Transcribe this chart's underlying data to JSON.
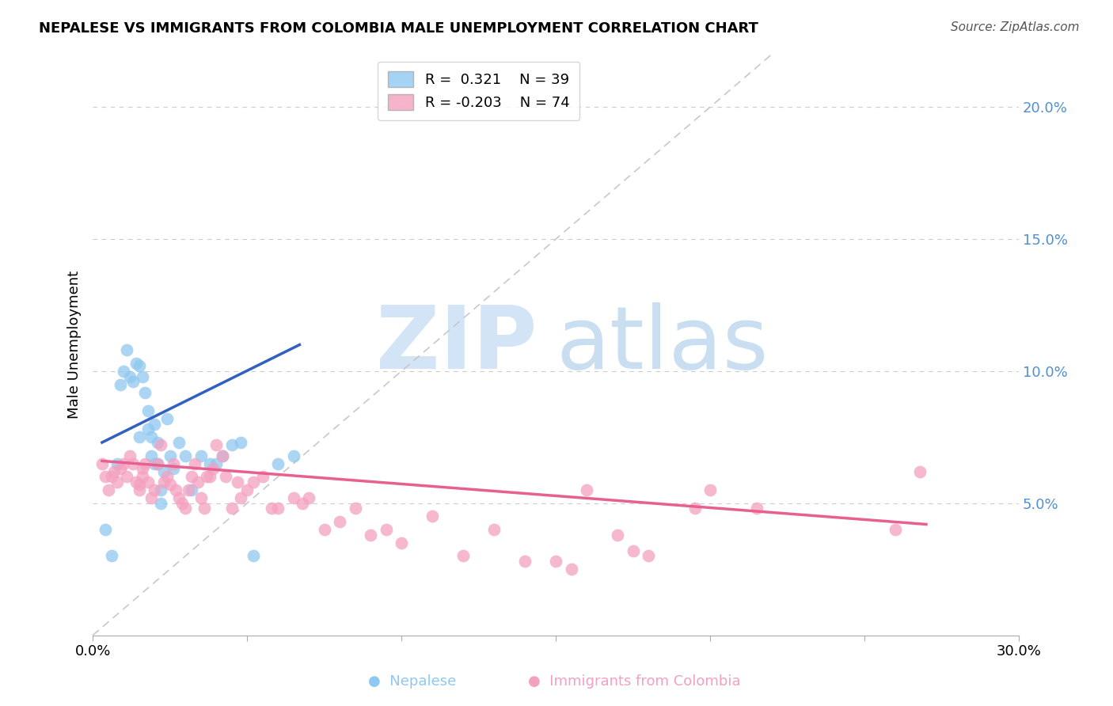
{
  "title": "NEPALESE VS IMMIGRANTS FROM COLOMBIA MALE UNEMPLOYMENT CORRELATION CHART",
  "source": "Source: ZipAtlas.com",
  "ylabel": "Male Unemployment",
  "legend_r": [
    "R =  0.321",
    "R = -0.203"
  ],
  "legend_n": [
    "N = 39",
    "N = 74"
  ],
  "xlim": [
    0.0,
    0.3
  ],
  "ylim": [
    0.0,
    0.22
  ],
  "yticks_right": [
    0.05,
    0.1,
    0.15,
    0.2
  ],
  "ytick_right_labels": [
    "5.0%",
    "10.0%",
    "15.0%",
    "20.0%"
  ],
  "xticks": [
    0.0,
    0.05,
    0.1,
    0.15,
    0.2,
    0.25,
    0.3
  ],
  "xtick_labels": [
    "0.0%",
    "",
    "",
    "",
    "",
    "",
    "30.0%"
  ],
  "color_blue": "#8fc8f0",
  "color_pink": "#f4a0c0",
  "color_blue_line": "#3060c0",
  "color_pink_line": "#e86090",
  "color_diag_line": "#c8c8c8",
  "color_right_axis": "#5090d0",
  "blue_points_x": [
    0.004,
    0.006,
    0.008,
    0.009,
    0.01,
    0.011,
    0.012,
    0.013,
    0.014,
    0.015,
    0.015,
    0.016,
    0.017,
    0.018,
    0.018,
    0.019,
    0.019,
    0.02,
    0.02,
    0.021,
    0.021,
    0.022,
    0.022,
    0.023,
    0.024,
    0.025,
    0.026,
    0.028,
    0.03,
    0.032,
    0.035,
    0.038,
    0.04,
    0.042,
    0.045,
    0.048,
    0.052,
    0.06,
    0.065
  ],
  "blue_points_y": [
    0.04,
    0.03,
    0.065,
    0.095,
    0.1,
    0.108,
    0.098,
    0.096,
    0.103,
    0.102,
    0.075,
    0.098,
    0.092,
    0.085,
    0.078,
    0.075,
    0.068,
    0.08,
    0.065,
    0.073,
    0.065,
    0.055,
    0.05,
    0.062,
    0.082,
    0.068,
    0.063,
    0.073,
    0.068,
    0.055,
    0.068,
    0.065,
    0.065,
    0.068,
    0.072,
    0.073,
    0.03,
    0.065,
    0.068
  ],
  "pink_points_x": [
    0.003,
    0.004,
    0.005,
    0.006,
    0.007,
    0.008,
    0.009,
    0.01,
    0.011,
    0.012,
    0.013,
    0.014,
    0.015,
    0.015,
    0.016,
    0.016,
    0.017,
    0.018,
    0.019,
    0.02,
    0.021,
    0.022,
    0.023,
    0.024,
    0.025,
    0.026,
    0.027,
    0.028,
    0.029,
    0.03,
    0.031,
    0.032,
    0.033,
    0.034,
    0.035,
    0.036,
    0.037,
    0.038,
    0.039,
    0.04,
    0.042,
    0.043,
    0.045,
    0.047,
    0.048,
    0.05,
    0.052,
    0.055,
    0.058,
    0.06,
    0.065,
    0.068,
    0.07,
    0.075,
    0.08,
    0.085,
    0.09,
    0.095,
    0.1,
    0.11,
    0.12,
    0.13,
    0.14,
    0.15,
    0.155,
    0.16,
    0.17,
    0.175,
    0.18,
    0.195,
    0.2,
    0.215,
    0.26,
    0.268
  ],
  "pink_points_y": [
    0.065,
    0.06,
    0.055,
    0.06,
    0.062,
    0.058,
    0.063,
    0.065,
    0.06,
    0.068,
    0.065,
    0.058,
    0.055,
    0.057,
    0.063,
    0.06,
    0.065,
    0.058,
    0.052,
    0.055,
    0.065,
    0.072,
    0.058,
    0.06,
    0.057,
    0.065,
    0.055,
    0.052,
    0.05,
    0.048,
    0.055,
    0.06,
    0.065,
    0.058,
    0.052,
    0.048,
    0.06,
    0.06,
    0.063,
    0.072,
    0.068,
    0.06,
    0.048,
    0.058,
    0.052,
    0.055,
    0.058,
    0.06,
    0.048,
    0.048,
    0.052,
    0.05,
    0.052,
    0.04,
    0.043,
    0.048,
    0.038,
    0.04,
    0.035,
    0.045,
    0.03,
    0.04,
    0.028,
    0.028,
    0.025,
    0.055,
    0.038,
    0.032,
    0.03,
    0.048,
    0.055,
    0.048,
    0.04,
    0.062
  ],
  "blue_trend_x": [
    0.003,
    0.067
  ],
  "blue_trend_y": [
    0.073,
    0.11
  ],
  "pink_trend_x": [
    0.003,
    0.27
  ],
  "pink_trend_y": [
    0.066,
    0.042
  ]
}
